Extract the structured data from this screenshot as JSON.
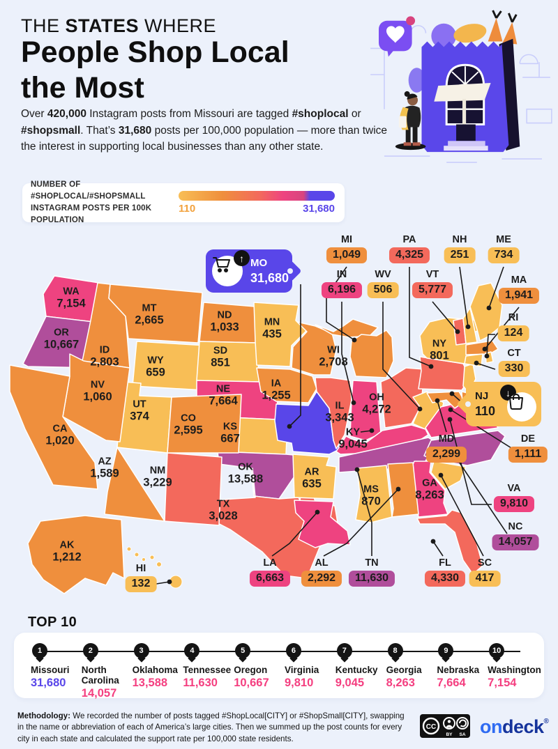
{
  "page": {
    "background": "#ECF1FB"
  },
  "header": {
    "kicker_pre": "THE ",
    "kicker_bold": "STATES",
    "kicker_post": " WHERE",
    "title_line1": "People Shop Local",
    "title_line2": "the Most",
    "intro_segments": [
      {
        "t": "Over ",
        "b": false
      },
      {
        "t": "420,000",
        "b": true
      },
      {
        "t": " Instagram posts from Missouri are tagged ",
        "b": false
      },
      {
        "t": "#shoplocal",
        "b": true
      },
      {
        "t": " or ",
        "b": false
      },
      {
        "t": "#shopsmall",
        "b": true
      },
      {
        "t": ". That’s ",
        "b": false
      },
      {
        "t": "31,680",
        "b": true
      },
      {
        "t": " posts per 100,000 population — more than twice the interest in supporting local businesses than any other state.",
        "b": false
      }
    ]
  },
  "legend": {
    "label_line1": "NUMBER OF #SHOPLOCAL/#SHOPSMALL",
    "label_line2": "INSTAGRAM POSTS PER 100K POPULATION",
    "min": "110",
    "max": "31,680"
  },
  "colors": {
    "yellow": "#F8BE56",
    "orange": "#EF8F3D",
    "salmon": "#F3695C",
    "pink": "#EE4380",
    "magenta": "#B04E9B",
    "blue": "#5946E9",
    "line": "#1a1a1a",
    "top10_value": "#F43F80",
    "legend_min_label": "#F2A23E",
    "legend_max_label": "#5946E9"
  },
  "map": {
    "callouts": [
      {
        "abbr": "MO",
        "value": "31,680",
        "icon": "cart-icon",
        "arrow": "up",
        "color": "blue",
        "text_color": "#ffffff"
      },
      {
        "abbr": "NJ",
        "value": "110",
        "icon": "bag-icon",
        "arrow": "down",
        "color": "yellow",
        "text_color": "#1b1b1b"
      }
    ]
  },
  "top10": {
    "heading": "TOP 10",
    "items": [
      {
        "rank": "1",
        "name": "Missouri",
        "value": "31,680",
        "accent": "blue"
      },
      {
        "rank": "2",
        "name": "North Carolina",
        "value": "14,057",
        "accent": "pink"
      },
      {
        "rank": "3",
        "name": "Oklahoma",
        "value": "13,588",
        "accent": "pink"
      },
      {
        "rank": "4",
        "name": "Tennessee",
        "value": "11,630",
        "accent": "pink"
      },
      {
        "rank": "5",
        "name": "Oregon",
        "value": "10,667",
        "accent": "pink"
      },
      {
        "rank": "6",
        "name": "Virginia",
        "value": "9,810",
        "accent": "pink"
      },
      {
        "rank": "7",
        "name": "Kentucky",
        "value": "9,045",
        "accent": "pink"
      },
      {
        "rank": "8",
        "name": "Georgia",
        "value": "8,263",
        "accent": "pink"
      },
      {
        "rank": "9",
        "name": "Nebraska",
        "value": "7,664",
        "accent": "pink"
      },
      {
        "rank": "10",
        "name": "Washington",
        "value": "7,154",
        "accent": "pink"
      }
    ]
  },
  "footer": {
    "methodology_label": "Methodology:",
    "methodology_text": " We recorded the number of posts tagged #ShopLocal[CITY] or #ShopSmall[CITY], swapping in the name or abbreviation of each of America’s large cities. Then we summed up the post counts for every city in each state and calculated the support rate per 100,000 state residents.",
    "cc_cc": "CC",
    "cc_by": "BY",
    "cc_sa": "SA",
    "logo_on": "on",
    "logo_deck": "deck",
    "logo_reg": "®"
  },
  "chart_data": {
    "type": "heatmap",
    "subtype": "us-choropleth-map",
    "title": "The States Where People Shop Local the Most",
    "metric": "Number of #shoplocal/#shopsmall Instagram posts per 100k population",
    "range": {
      "min": 110,
      "max": 31680
    },
    "legend_position": "top-left",
    "states": [
      {
        "abbr": "AL",
        "value": 2292,
        "label": "2,292",
        "color": "orange"
      },
      {
        "abbr": "AK",
        "value": 1212,
        "label": "1,212",
        "color": "orange"
      },
      {
        "abbr": "AZ",
        "value": 1589,
        "label": "1,589",
        "color": "orange"
      },
      {
        "abbr": "AR",
        "value": 635,
        "label": "635",
        "color": "yellow"
      },
      {
        "abbr": "CA",
        "value": 1020,
        "label": "1,020",
        "color": "orange"
      },
      {
        "abbr": "CO",
        "value": 2595,
        "label": "2,595",
        "color": "orange"
      },
      {
        "abbr": "CT",
        "value": 330,
        "label": "330",
        "color": "yellow"
      },
      {
        "abbr": "DE",
        "value": 1111,
        "label": "1,111",
        "color": "orange"
      },
      {
        "abbr": "FL",
        "value": 4330,
        "label": "4,330",
        "color": "salmon"
      },
      {
        "abbr": "GA",
        "value": 8263,
        "label": "8,263",
        "color": "pink"
      },
      {
        "abbr": "HI",
        "value": 132,
        "label": "132",
        "color": "yellow"
      },
      {
        "abbr": "ID",
        "value": 2803,
        "label": "2,803",
        "color": "orange"
      },
      {
        "abbr": "IL",
        "value": 3343,
        "label": "3,343",
        "color": "salmon"
      },
      {
        "abbr": "IN",
        "value": 6196,
        "label": "6,196",
        "color": "pink"
      },
      {
        "abbr": "IA",
        "value": 1255,
        "label": "1,255",
        "color": "orange"
      },
      {
        "abbr": "KS",
        "value": 667,
        "label": "667",
        "color": "yellow"
      },
      {
        "abbr": "KY",
        "value": 9045,
        "label": "9,045",
        "color": "pink"
      },
      {
        "abbr": "LA",
        "value": 6663,
        "label": "6,663",
        "color": "pink"
      },
      {
        "abbr": "ME",
        "value": 734,
        "label": "734",
        "color": "yellow"
      },
      {
        "abbr": "MD",
        "value": 2299,
        "label": "2,299",
        "color": "orange"
      },
      {
        "abbr": "MA",
        "value": 1941,
        "label": "1,941",
        "color": "orange"
      },
      {
        "abbr": "MI",
        "value": 1049,
        "label": "1,049",
        "color": "orange"
      },
      {
        "abbr": "MN",
        "value": 435,
        "label": "435",
        "color": "yellow"
      },
      {
        "abbr": "MS",
        "value": 870,
        "label": "870",
        "color": "yellow"
      },
      {
        "abbr": "MO",
        "value": 31680,
        "label": "31,680",
        "color": "blue"
      },
      {
        "abbr": "MT",
        "value": 2665,
        "label": "2,665",
        "color": "orange"
      },
      {
        "abbr": "NE",
        "value": 7664,
        "label": "7,664",
        "color": "pink"
      },
      {
        "abbr": "NV",
        "value": 1060,
        "label": "1,060",
        "color": "orange"
      },
      {
        "abbr": "NH",
        "value": 251,
        "label": "251",
        "color": "yellow"
      },
      {
        "abbr": "NJ",
        "value": 110,
        "label": "110",
        "color": "yellow"
      },
      {
        "abbr": "NM",
        "value": 3229,
        "label": "3,229",
        "color": "salmon"
      },
      {
        "abbr": "NY",
        "value": 801,
        "label": "801",
        "color": "yellow"
      },
      {
        "abbr": "NC",
        "value": 14057,
        "label": "14,057",
        "color": "magenta"
      },
      {
        "abbr": "ND",
        "value": 1033,
        "label": "1,033",
        "color": "orange"
      },
      {
        "abbr": "OH",
        "value": 4272,
        "label": "4,272",
        "color": "salmon"
      },
      {
        "abbr": "OK",
        "value": 13588,
        "label": "13,588",
        "color": "magenta"
      },
      {
        "abbr": "OR",
        "value": 10667,
        "label": "10,667",
        "color": "magenta"
      },
      {
        "abbr": "PA",
        "value": 4325,
        "label": "4,325",
        "color": "salmon"
      },
      {
        "abbr": "RI",
        "value": 124,
        "label": "124",
        "color": "yellow"
      },
      {
        "abbr": "SC",
        "value": 417,
        "label": "417",
        "color": "yellow"
      },
      {
        "abbr": "SD",
        "value": 851,
        "label": "851",
        "color": "yellow"
      },
      {
        "abbr": "TN",
        "value": 11630,
        "label": "11,630",
        "color": "magenta"
      },
      {
        "abbr": "TX",
        "value": 3028,
        "label": "3,028",
        "color": "salmon"
      },
      {
        "abbr": "UT",
        "value": 374,
        "label": "374",
        "color": "yellow"
      },
      {
        "abbr": "VT",
        "value": 5777,
        "label": "5,777",
        "color": "salmon"
      },
      {
        "abbr": "VA",
        "value": 9810,
        "label": "9,810",
        "color": "pink"
      },
      {
        "abbr": "WA",
        "value": 7154,
        "label": "7,154",
        "color": "pink"
      },
      {
        "abbr": "WV",
        "value": 506,
        "label": "506",
        "color": "yellow"
      },
      {
        "abbr": "WI",
        "value": 2708,
        "label": "2,708",
        "color": "orange"
      },
      {
        "abbr": "WY",
        "value": 659,
        "label": "659",
        "color": "yellow"
      }
    ],
    "top10": [
      {
        "rank": 1,
        "state": "Missouri",
        "value": 31680
      },
      {
        "rank": 2,
        "state": "North Carolina",
        "value": 14057
      },
      {
        "rank": 3,
        "state": "Oklahoma",
        "value": 13588
      },
      {
        "rank": 4,
        "state": "Tennessee",
        "value": 11630
      },
      {
        "rank": 5,
        "state": "Oregon",
        "value": 10667
      },
      {
        "rank": 6,
        "state": "Virginia",
        "value": 9810
      },
      {
        "rank": 7,
        "state": "Kentucky",
        "value": 9045
      },
      {
        "rank": 8,
        "state": "Georgia",
        "value": 8263
      },
      {
        "rank": 9,
        "state": "Nebraska",
        "value": 7664
      },
      {
        "rank": 10,
        "state": "Washington",
        "value": 7154
      }
    ]
  }
}
